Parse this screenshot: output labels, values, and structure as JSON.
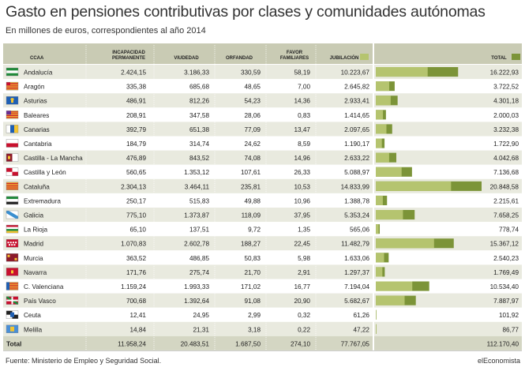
{
  "title": "Gasto en pensiones contributivas por clases y comunidades autónomas",
  "subtitle": "En millones de euros, correspondientes al año 2014",
  "footer": {
    "source": "Fuente: Ministerio de Empleo y Seguridad Social.",
    "brand": "elEconomista"
  },
  "colors": {
    "header_band": "#c9cbb4",
    "row_band": "#e9eadf",
    "total_band": "#d4d6c3",
    "bar_light": "#b5c46f",
    "bar_dark": "#7c9438",
    "text": "#222222"
  },
  "chart_data": {
    "type": "table",
    "columns": [
      {
        "key": "ccaa",
        "label": [
          "CCAA"
        ]
      },
      {
        "key": "incapacidad",
        "label": [
          "INCAPACIDAD",
          "PERMANENTE"
        ]
      },
      {
        "key": "viudedad",
        "label": [
          "VIUDEDAD"
        ]
      },
      {
        "key": "orfandad",
        "label": [
          "ORFANDAD"
        ]
      },
      {
        "key": "favor",
        "label": [
          "FAVOR",
          "FAMILIARES"
        ]
      },
      {
        "key": "jubilacion",
        "label": [
          "JUBILACIÓN"
        ]
      },
      {
        "key": "total",
        "label": [
          "TOTAL"
        ]
      }
    ],
    "rows": [
      {
        "ccaa": "Andalucía",
        "flag": "andalucia-flag-icon",
        "incapacidad": "2.424,15",
        "viudedad": "3.186,33",
        "orfandad": "330,59",
        "favor": "58,19",
        "jubilacion": "10.223,67",
        "total": "16.222,93",
        "jub_value": 10223.67,
        "total_value": 16222.93
      },
      {
        "ccaa": "Aragón",
        "flag": "aragon-flag-icon",
        "incapacidad": "335,38",
        "viudedad": "685,68",
        "orfandad": "48,65",
        "favor": "7,00",
        "jubilacion": "2.645,82",
        "total": "3.722,52",
        "jub_value": 2645.82,
        "total_value": 3722.52
      },
      {
        "ccaa": "Asturias",
        "flag": "asturias-flag-icon",
        "incapacidad": "486,91",
        "viudedad": "812,26",
        "orfandad": "54,23",
        "favor": "14,36",
        "jubilacion": "2.933,41",
        "total": "4.301,18",
        "jub_value": 2933.41,
        "total_value": 4301.18
      },
      {
        "ccaa": "Baleares",
        "flag": "baleares-flag-icon",
        "incapacidad": "208,91",
        "viudedad": "347,58",
        "orfandad": "28,06",
        "favor": "0,83",
        "jubilacion": "1.414,65",
        "total": "2.000,03",
        "jub_value": 1414.65,
        "total_value": 2000.03
      },
      {
        "ccaa": "Canarias",
        "flag": "canarias-flag-icon",
        "incapacidad": "392,79",
        "viudedad": "651,38",
        "orfandad": "77,09",
        "favor": "13,47",
        "jubilacion": "2.097,65",
        "total": "3.232,38",
        "jub_value": 2097.65,
        "total_value": 3232.38
      },
      {
        "ccaa": "Cantabria",
        "flag": "cantabria-flag-icon",
        "incapacidad": "184,79",
        "viudedad": "314,74",
        "orfandad": "24,62",
        "favor": "8,59",
        "jubilacion": "1.190,17",
        "total": "1.722,90",
        "jub_value": 1190.17,
        "total_value": 1722.9
      },
      {
        "ccaa": "Castilla - La Mancha",
        "flag": "castilla-la-mancha-flag-icon",
        "incapacidad": "476,89",
        "viudedad": "843,52",
        "orfandad": "74,08",
        "favor": "14,96",
        "jubilacion": "2.633,22",
        "total": "4.042,68",
        "jub_value": 2633.22,
        "total_value": 4042.68
      },
      {
        "ccaa": "Castilla y León",
        "flag": "castilla-y-leon-flag-icon",
        "incapacidad": "560,65",
        "viudedad": "1.353,12",
        "orfandad": "107,61",
        "favor": "26,33",
        "jubilacion": "5.088,97",
        "total": "7.136,68",
        "jub_value": 5088.97,
        "total_value": 7136.68
      },
      {
        "ccaa": "Cataluña",
        "flag": "cataluna-flag-icon",
        "incapacidad": "2.304,13",
        "viudedad": "3.464,11",
        "orfandad": "235,81",
        "favor": "10,53",
        "jubilacion": "14.833,99",
        "total": "20.848,58",
        "jub_value": 14833.99,
        "total_value": 20848.58
      },
      {
        "ccaa": "Extremadura",
        "flag": "extremadura-flag-icon",
        "incapacidad": "250,17",
        "viudedad": "515,83",
        "orfandad": "49,88",
        "favor": "10,96",
        "jubilacion": "1.388,78",
        "total": "2.215,61",
        "jub_value": 1388.78,
        "total_value": 2215.61
      },
      {
        "ccaa": "Galicia",
        "flag": "galicia-flag-icon",
        "incapacidad": "775,10",
        "viudedad": "1.373,87",
        "orfandad": "118,09",
        "favor": "37,95",
        "jubilacion": "5.353,24",
        "total": "7.658,25",
        "jub_value": 5353.24,
        "total_value": 7658.25
      },
      {
        "ccaa": "La Rioja",
        "flag": "la-rioja-flag-icon",
        "incapacidad": "65,10",
        "viudedad": "137,51",
        "orfandad": "9,72",
        "favor": "1,35",
        "jubilacion": "565,06",
        "total": "778,74",
        "jub_value": 565.06,
        "total_value": 778.74
      },
      {
        "ccaa": "Madrid",
        "flag": "madrid-flag-icon",
        "incapacidad": "1.070,83",
        "viudedad": "2.602,78",
        "orfandad": "188,27",
        "favor": "22,45",
        "jubilacion": "11.482,79",
        "total": "15.367,12",
        "jub_value": 11482.79,
        "total_value": 15367.12
      },
      {
        "ccaa": "Murcia",
        "flag": "murcia-flag-icon",
        "incapacidad": "363,52",
        "viudedad": "486,85",
        "orfandad": "50,83",
        "favor": "5,98",
        "jubilacion": "1.633,06",
        "total": "2.540,23",
        "jub_value": 1633.06,
        "total_value": 2540.23
      },
      {
        "ccaa": "Navarra",
        "flag": "navarra-flag-icon",
        "incapacidad": "171,76",
        "viudedad": "275,74",
        "orfandad": "21,70",
        "favor": "2,91",
        "jubilacion": "1.297,37",
        "total": "1.769,49",
        "jub_value": 1297.37,
        "total_value": 1769.49
      },
      {
        "ccaa": "C. Valenciana",
        "flag": "valencia-flag-icon",
        "incapacidad": "1.159,24",
        "viudedad": "1.993,33",
        "orfandad": "171,02",
        "favor": "16,77",
        "jubilacion": "7.194,04",
        "total": "10.534,40",
        "jub_value": 7194.04,
        "total_value": 10534.4
      },
      {
        "ccaa": "País Vasco",
        "flag": "pais-vasco-flag-icon",
        "incapacidad": "700,68",
        "viudedad": "1.392,64",
        "orfandad": "91,08",
        "favor": "20,90",
        "jubilacion": "5.682,67",
        "total": "7.887,97",
        "jub_value": 5682.67,
        "total_value": 7887.97
      },
      {
        "ccaa": "Ceuta",
        "flag": "ceuta-flag-icon",
        "incapacidad": "12,41",
        "viudedad": "24,95",
        "orfandad": "2,99",
        "favor": "0,32",
        "jubilacion": "61,26",
        "total": "101,92",
        "jub_value": 61.26,
        "total_value": 101.92
      },
      {
        "ccaa": "Melilla",
        "flag": "melilla-flag-icon",
        "incapacidad": "14,84",
        "viudedad": "21,31",
        "orfandad": "3,18",
        "favor": "0,22",
        "jubilacion": "47,22",
        "total": "86,77",
        "jub_value": 47.22,
        "total_value": 86.77
      }
    ],
    "total_row": {
      "ccaa": "Total",
      "incapacidad": "11.958,24",
      "viudedad": "20.483,51",
      "orfandad": "1.687,50",
      "favor": "274,10",
      "jubilacion": "77.767,05",
      "total": "112.170,40"
    },
    "bar_scale_max": 20848.58
  }
}
